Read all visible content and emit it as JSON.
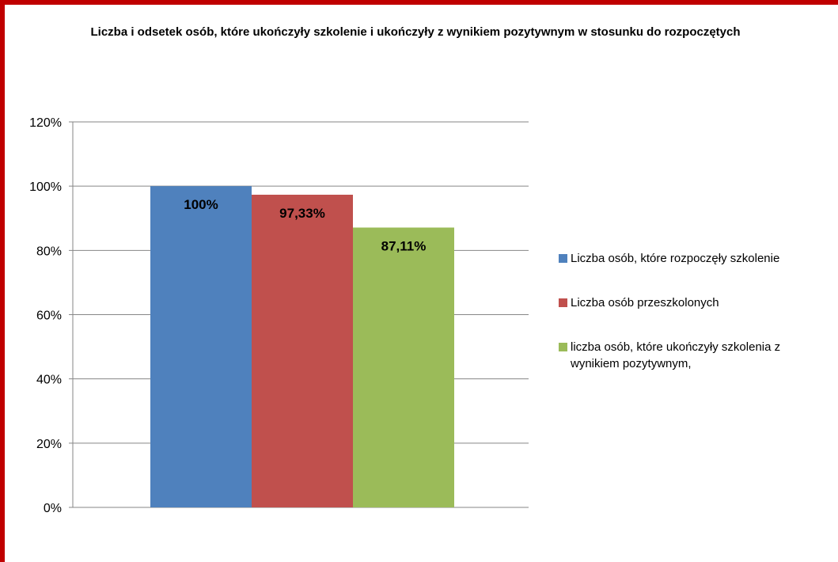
{
  "chart_data": {
    "type": "bar",
    "title": "Liczba i odsetek osób, które ukończyły szkolenie i ukończyły z wynikiem pozytywnym w stosunku do rozpoczętych",
    "series": [
      {
        "name": "Liczba osób, które rozpoczęły szkolenie",
        "value": 100,
        "label": "100%",
        "color": "#4f81bd"
      },
      {
        "name": "Liczba osób przeszkolonych",
        "value": 97.33,
        "label": "97,33%",
        "color": "#c0504d"
      },
      {
        "name": "liczba osób, które ukończyły szkolenia z wynikiem pozytywnym,",
        "value": 87.11,
        "label": "87,11%",
        "color": "#9bbb59"
      }
    ],
    "ylim": [
      0,
      120
    ],
    "yticks": [
      "0%",
      "20%",
      "40%",
      "60%",
      "80%",
      "100%",
      "120%"
    ],
    "ytick_values": [
      0,
      20,
      40,
      60,
      80,
      100,
      120
    ],
    "grid": true,
    "legend_position": "right"
  }
}
